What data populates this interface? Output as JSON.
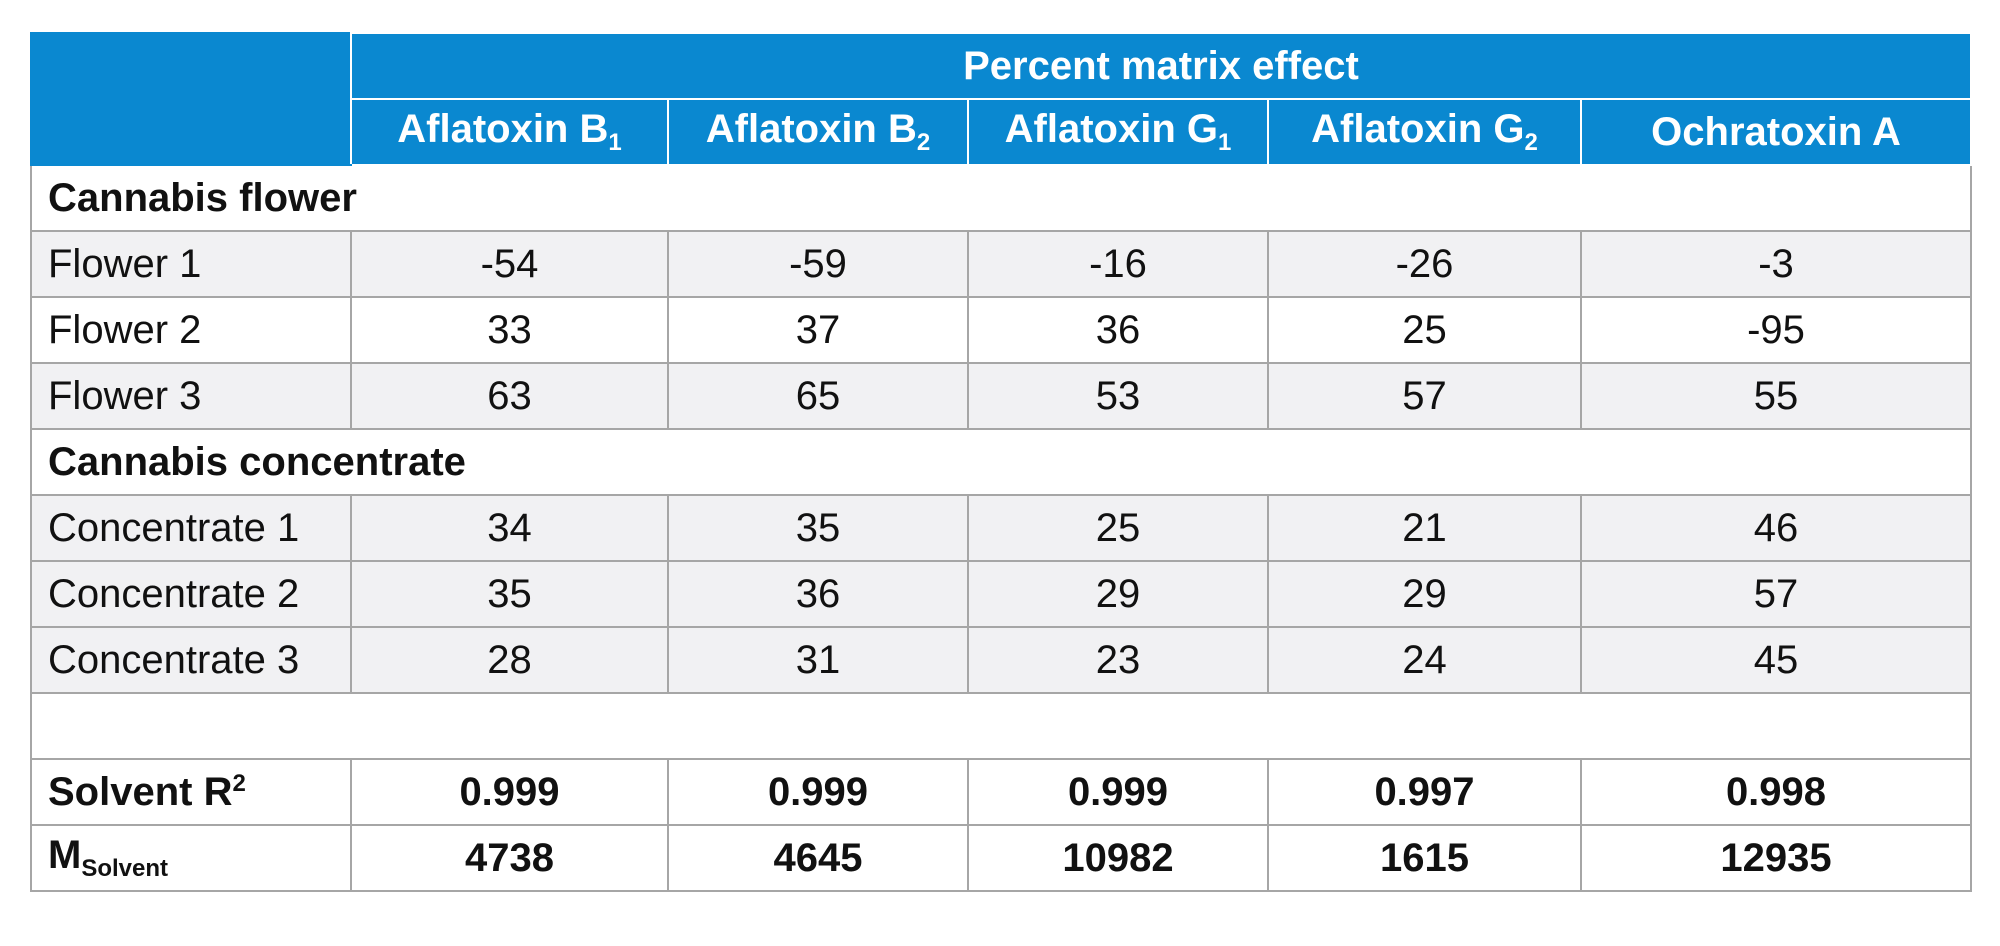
{
  "header": {
    "group_title": "Percent matrix effect",
    "columns": [
      {
        "name": "Aflatoxin B",
        "sub": "1"
      },
      {
        "name": "Aflatoxin B",
        "sub": "2"
      },
      {
        "name": "Aflatoxin G",
        "sub": "1"
      },
      {
        "name": "Aflatoxin G",
        "sub": "2"
      },
      {
        "name": "Ochratoxin A",
        "sub": ""
      }
    ]
  },
  "sections": [
    {
      "title": "Cannabis flower",
      "rows": [
        {
          "label": "Flower 1",
          "values": [
            "-54",
            "-59",
            "-16",
            "-26",
            "-3"
          ]
        },
        {
          "label": "Flower 2",
          "values": [
            "33",
            "37",
            "36",
            "25",
            "-95"
          ]
        },
        {
          "label": "Flower 3",
          "values": [
            "63",
            "65",
            "53",
            "57",
            "55"
          ]
        }
      ]
    },
    {
      "title": "Cannabis concentrate",
      "rows": [
        {
          "label": "Concentrate 1",
          "values": [
            "34",
            "35",
            "25",
            "21",
            "46"
          ]
        },
        {
          "label": "Concentrate 2",
          "values": [
            "35",
            "36",
            "29",
            "29",
            "57"
          ]
        },
        {
          "label": "Concentrate 3",
          "values": [
            "28",
            "31",
            "23",
            "24",
            "45"
          ]
        }
      ]
    }
  ],
  "summary": [
    {
      "label": "Solvent R",
      "sup": "2",
      "sub": "",
      "values": [
        "0.999",
        "0.999",
        "0.999",
        "0.997",
        "0.998"
      ]
    },
    {
      "label": "M",
      "sup": "",
      "sub": "Solvent",
      "values": [
        "4738",
        "4645",
        "10982",
        "1615",
        "12935"
      ]
    }
  ],
  "colors": {
    "header_bg": "#0a88d0",
    "row_alt_bg": "#f1f1f3",
    "border": "#a6a6a6"
  }
}
